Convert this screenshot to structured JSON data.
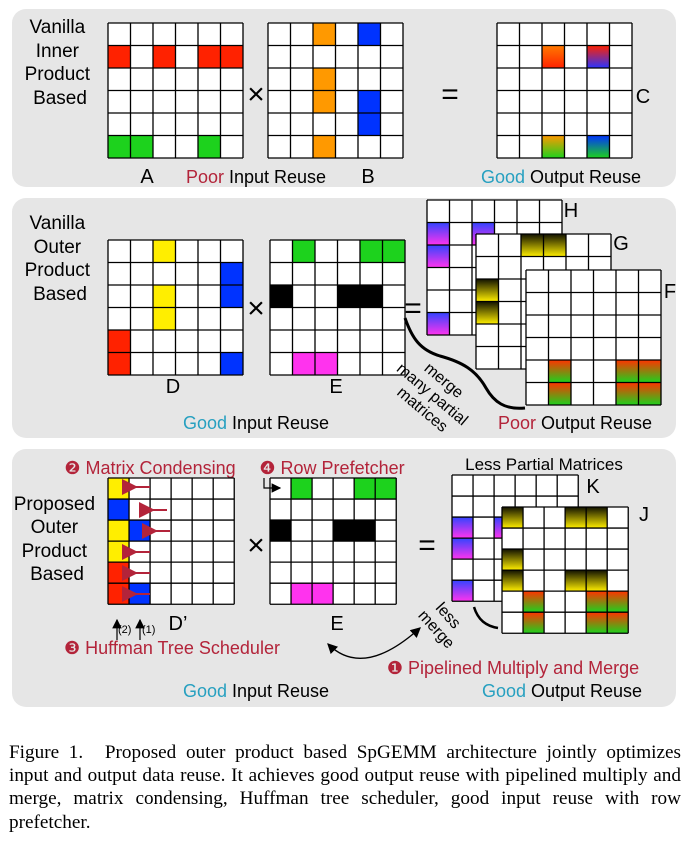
{
  "panel1": {
    "label": [
      "Vanilla",
      "Inner",
      "Product",
      "Based"
    ],
    "matrix_a": "A",
    "matrix_b": "B",
    "matrix_c": "C",
    "times": "×",
    "equals": "=",
    "input_quality": "Poor",
    "input_text": " Input Reuse",
    "output_quality": "Good",
    "output_text": " Output Reuse"
  },
  "panel2": {
    "label": [
      "Vanilla",
      "Outer",
      "Product",
      "Based"
    ],
    "matrix_d": "D",
    "matrix_e": "E",
    "matrix_f": "F",
    "matrix_g": "G",
    "matrix_h": "H",
    "times": "×",
    "equals": "=",
    "merge_note": [
      "merge",
      "many partial",
      "matrices"
    ],
    "input_quality": "Good",
    "input_text": " Input Reuse",
    "output_quality": "Poor",
    "output_text": " Output Reuse"
  },
  "panel3": {
    "label": [
      "Proposed",
      "Outer",
      "Product",
      "Based"
    ],
    "matrix_condensing": "❷ Matrix Condensing",
    "row_prefetcher": "❹ Row Prefetcher",
    "less_partial": "Less Partial Matrices",
    "matrix_dp": "D’",
    "matrix_e": "E",
    "matrix_k": "K",
    "matrix_j": "J",
    "order_2": "(2)",
    "order_1": "(1)",
    "huffman": "❸ Huffman Tree Scheduler",
    "pipelined": "❶ Pipelined Multiply and Merge",
    "less_merge": [
      "less",
      "merge"
    ],
    "times": "×",
    "equals": "=",
    "input_quality": "Good",
    "input_text": " Input Reuse",
    "output_quality": "Good",
    "output_text": " Output Reuse"
  },
  "caption": {
    "label": "Figure 1.",
    "text": "Proposed outer product based SpGEMM architecture jointly optimizes input and output data reuse. It achieves good output reuse with pipelined multiply and merge, matrix condensing, Huffman tree scheduler, good input reuse with row prefetcher."
  },
  "colors": {
    "panel_bg": "#e6e6e6",
    "red": "#ff2200",
    "green": "#1dd21d",
    "orange": "#ff9900",
    "blue": "#0033ff",
    "yellow": "#ffee00",
    "black": "#000000",
    "magenta": "#ff33ee",
    "accent_text": "#b3243a",
    "cyan_text": "#27a0c0"
  }
}
